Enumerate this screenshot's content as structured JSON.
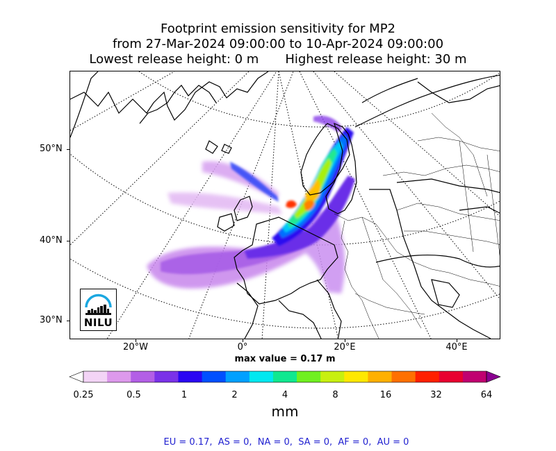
{
  "title": {
    "line1": "Footprint emission sensitivity for MP2",
    "line2": "from 27-Mar-2024 09:00:00 to 10-Apr-2024 09:00:00",
    "line3_left": "Lowest release height: 0 m",
    "line3_right": "Highest release height: 30 m"
  },
  "map": {
    "lat_labels": [
      "50°N",
      "40°N",
      "30°N"
    ],
    "lon_labels": [
      "20°W",
      "0°",
      "20°E",
      "40°E"
    ],
    "logo_text": "NILU",
    "logo_colors": {
      "arc": "#1aa7e0",
      "bars": "#111111"
    }
  },
  "max_value_text": "max value = 0.17 m",
  "colorbar": {
    "tick_labels": [
      "0.25",
      "0.5",
      "1",
      "2",
      "4",
      "8",
      "16",
      "32",
      "64"
    ],
    "unit": "mm",
    "colors": [
      "#ffffff",
      "#f3d4f6",
      "#dd99ec",
      "#b35fe6",
      "#7a32e8",
      "#2a06f2",
      "#0050ff",
      "#00a0ff",
      "#00e8f0",
      "#10e890",
      "#70f020",
      "#c8f010",
      "#ffe800",
      "#ffb000",
      "#ff7000",
      "#ff2000",
      "#e80030",
      "#c00070",
      "#8a0090"
    ]
  },
  "region_totals": "EU = 0.17,  AS = 0,  NA = 0,  SA = 0,  AF = 0,  AU = 0",
  "colors": {
    "title": "#000000",
    "region_totals": "#1f1fd0"
  }
}
